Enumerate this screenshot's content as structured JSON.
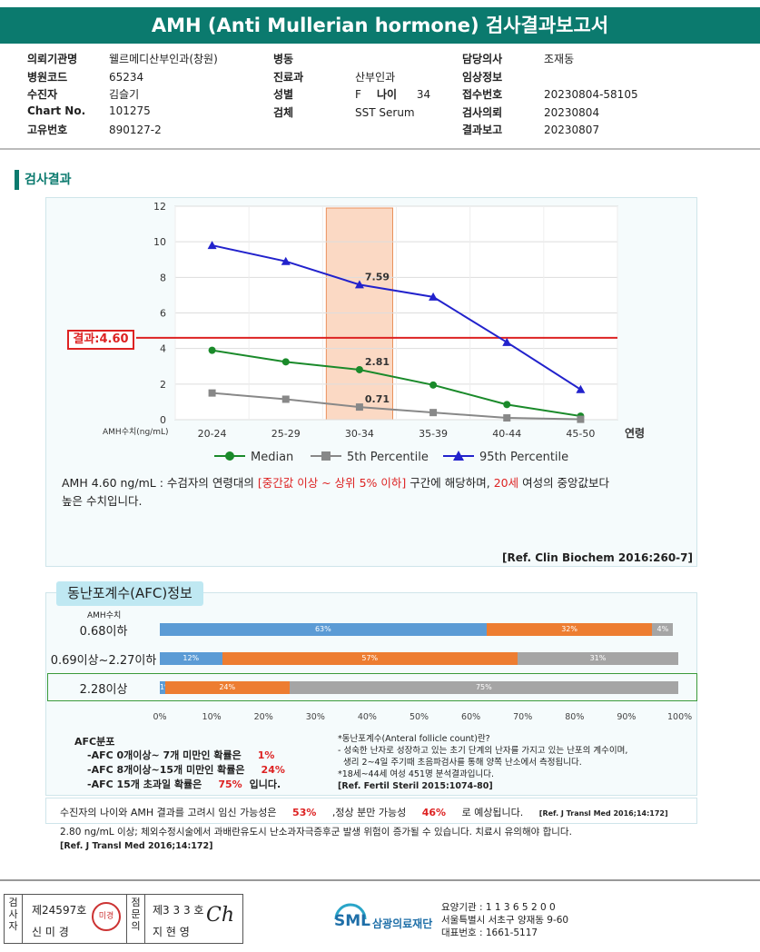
{
  "header": {
    "title": "AMH (Anti Mullerian hormone) 검사결과보고서"
  },
  "info": {
    "col1": [
      {
        "label": "의뢰기관명",
        "value": "웰르메디산부인과(창원)"
      },
      {
        "label": "병원코드",
        "value": "65234"
      },
      {
        "label": "수진자",
        "value": "김슬기"
      },
      {
        "label": "Chart No.",
        "value": "101275"
      },
      {
        "label": "고유번호",
        "value": "890127-2"
      }
    ],
    "col2": [
      {
        "label": "병동",
        "value": ""
      },
      {
        "label": "진료과",
        "value": "산부인과"
      },
      {
        "label": "성별",
        "value": "F"
      },
      {
        "label": "검체",
        "value": "SST Serum"
      }
    ],
    "age_label": "나이",
    "age_value": "34",
    "col3": [
      {
        "label": "담당의사",
        "value": "조재동"
      },
      {
        "label": "임상정보",
        "value": ""
      },
      {
        "label": "접수번호",
        "value": "20230804-58105"
      },
      {
        "label": "검사의뢰",
        "value": "20230804"
      },
      {
        "label": "결과보고",
        "value": "20230807"
      }
    ]
  },
  "section_title": "검사결과",
  "chart_data": {
    "type": "line",
    "categories": [
      "20-24",
      "25-29",
      "30-34",
      "35-39",
      "40-44",
      "45-50"
    ],
    "x_suffix_label": "연령",
    "ylabel": "AMH수치(ng/mL)",
    "ylim": [
      0,
      12
    ],
    "yticks": [
      0,
      2,
      4,
      6,
      8,
      10,
      12
    ],
    "highlight_category": "30-34",
    "result_line": 4.6,
    "result_label": "결과:4.60",
    "series": [
      {
        "name": "Median",
        "color": "#1a8a2a",
        "marker": "circle",
        "values": [
          3.9,
          3.25,
          2.81,
          1.95,
          0.85,
          0.2
        ]
      },
      {
        "name": "5th Percentile",
        "color": "#888888",
        "marker": "square",
        "values": [
          1.5,
          1.15,
          0.71,
          0.4,
          0.1,
          0.02
        ]
      },
      {
        "name": "95th Percentile",
        "color": "#2222cc",
        "marker": "triangle",
        "values": [
          9.8,
          8.9,
          7.59,
          6.9,
          4.35,
          1.7
        ]
      }
    ],
    "point_labels": [
      {
        "series": 2,
        "index": 2,
        "text": "7.59"
      },
      {
        "series": 0,
        "index": 2,
        "text": "2.81"
      },
      {
        "series": 1,
        "index": 2,
        "text": "0.71"
      }
    ],
    "grid": true,
    "legend_position": "bottom"
  },
  "interpretation": {
    "prefix": "AMH  4.60 ng/mL : 수검자의 연령대의 ",
    "range_text": "[중간값 이상 ~ 상위 5% 이하]",
    "middle": " 구간에 해당하며, ",
    "age_text": "20세",
    "suffix": " 여성의 중앙값보다",
    "line2": "높은 수치입니다.",
    "reference": "[Ref. Clin Biochem 2016:260-7]"
  },
  "afc": {
    "title": "동난포계수(AFC)정보",
    "amh_col_label": "AMH수치",
    "colors": {
      "blue": "#5b9bd5",
      "orange": "#ed7d31",
      "gray": "#a5a5a5"
    },
    "rows": [
      {
        "label": "0.68이하",
        "segments": [
          63,
          32,
          4
        ],
        "texts": [
          "63%",
          "32%",
          "4%"
        ]
      },
      {
        "label": "0.69이상~2.27이하",
        "segments": [
          12,
          57,
          31
        ],
        "texts": [
          "12%",
          "57%",
          "31%"
        ]
      },
      {
        "label": "2.28이상",
        "segments": [
          1,
          24,
          75
        ],
        "texts": [
          "1%",
          "24%",
          "75%"
        ],
        "highlight": true
      }
    ],
    "axis_ticks": [
      "0%",
      "10%",
      "20%",
      "30%",
      "40%",
      "50%",
      "60%",
      "70%",
      "80%",
      "90%",
      "100%"
    ],
    "dist_title": "AFC분포",
    "dist_lines": [
      {
        "text": "-AFC  0개이상~ 7개 미만인 확률은",
        "value": "1%"
      },
      {
        "text": "-AFC  8개이상~15개 미만인 확률은",
        "value": "24%"
      },
      {
        "text": "-AFC  15개 초과일 확률은",
        "value": "75%",
        "tail": "입니다."
      }
    ],
    "def_lines": [
      "*동난포계수(Anteral follicle count)란?",
      "- 성숙한 난자로 성장하고 있는 초기 단계의 난자를 가지고 있는 난포의 계수이며,",
      "  생리 2~4일 주기때 초음파검사를 통해 양쪽 난소에서 측정됩니다.",
      "*18세~44세 여성 451명 분석결과입니다.",
      "[Ref. Fertil Steril 2015:1074-80]"
    ]
  },
  "pregnancy": {
    "prefix": "수진자의 나이와 AMH 결과를 고려시 임신 가능성은",
    "value1": "53%",
    "mid": ",정상 분만 가능성",
    "value2": "46%",
    "suffix": "로 예상됩니다.",
    "ref": "[Ref. J Transl Med 2016;14:172]"
  },
  "warning": {
    "line1": "2.80  ng/mL  이상; 체외수정시술에서 과배란유도시 난소과자극증후군 발생 위험이 증가될 수 있습니다. 치료시 유의해야 합니다.",
    "line2": "[Ref. J Transl Med 2016;14:172]"
  },
  "footer": {
    "cell1_label": "검사자",
    "cell1_no": "제24597호",
    "cell1_name": "신 미 경",
    "cell2_label": "점문의",
    "cell2_no": "제3 3 3 호",
    "cell2_name": "지 현 영",
    "stamp_text": "미경",
    "signature": "Ch",
    "logo_text": "SML",
    "org_name": "삼광의료재단",
    "inst_no": "요양기관 : 1 1 3 6 5 2 0 0",
    "address": "서울특별시 서초구 양재동 9-60",
    "phone": "대표번호 : 1661-5117"
  }
}
